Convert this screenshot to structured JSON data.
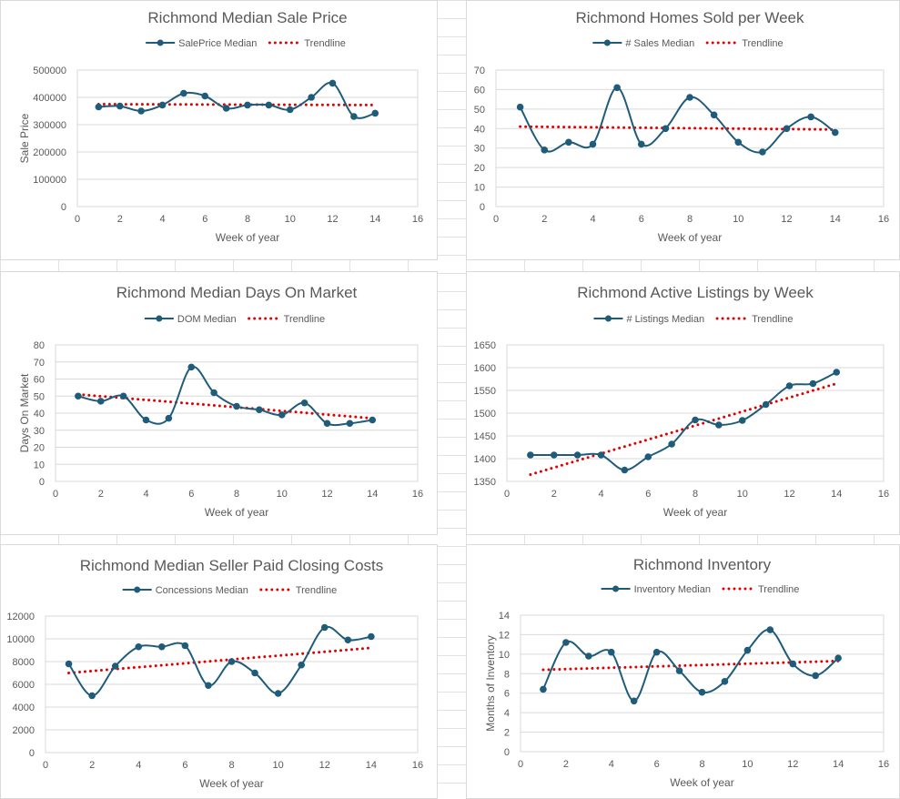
{
  "colors": {
    "series": "#1f5c7a",
    "trend": "#e00000",
    "grid": "#d9d9d9",
    "text": "#595959"
  },
  "chart_data": [
    {
      "id": "sale-price",
      "type": "line",
      "title": "Richmond Median Sale Price",
      "series_name": "SalePrice Median",
      "trend_name": "Trendline",
      "xlabel": "Week of year",
      "ylabel": "Sale Price",
      "xlim": [
        0,
        16
      ],
      "xticks": [
        0,
        2,
        4,
        6,
        8,
        10,
        12,
        14,
        16
      ],
      "ylim": [
        0,
        500000
      ],
      "yticks": [
        0,
        100000,
        200000,
        300000,
        400000,
        500000
      ],
      "x": [
        1,
        2,
        3,
        4,
        5,
        6,
        7,
        8,
        9,
        10,
        11,
        12,
        13,
        14
      ],
      "values": [
        365000,
        368000,
        350000,
        372000,
        415000,
        405000,
        360000,
        372000,
        372000,
        355000,
        400000,
        452000,
        330000,
        342000
      ],
      "trend": [
        [
          1,
          375000
        ],
        [
          14,
          372000
        ]
      ]
    },
    {
      "id": "homes-sold",
      "type": "line",
      "title": "Richmond Homes Sold per Week",
      "series_name": "# Sales Median",
      "trend_name": "Trendline",
      "xlabel": "Week of year",
      "ylabel": "",
      "xlim": [
        0,
        16
      ],
      "xticks": [
        0,
        2,
        4,
        6,
        8,
        10,
        12,
        14,
        16
      ],
      "ylim": [
        0,
        70
      ],
      "yticks": [
        0,
        10,
        20,
        30,
        40,
        50,
        60,
        70
      ],
      "x": [
        1,
        2,
        3,
        4,
        5,
        6,
        7,
        8,
        9,
        10,
        11,
        12,
        13,
        14
      ],
      "values": [
        51,
        29,
        33,
        32,
        61,
        32,
        40,
        56,
        47,
        33,
        28,
        40,
        46,
        38
      ],
      "trend": [
        [
          1,
          41
        ],
        [
          14,
          39.5
        ]
      ]
    },
    {
      "id": "days-on-market",
      "type": "line",
      "title": "Richmond Median Days On Market",
      "series_name": "DOM Median",
      "trend_name": "Trendline",
      "xlabel": "Week of year",
      "ylabel": "Days On Market",
      "xlim": [
        0,
        16
      ],
      "xticks": [
        0,
        2,
        4,
        6,
        8,
        10,
        12,
        14,
        16
      ],
      "ylim": [
        0,
        80
      ],
      "yticks": [
        0,
        10,
        20,
        30,
        40,
        50,
        60,
        70,
        80
      ],
      "x": [
        1,
        2,
        3,
        4,
        5,
        6,
        7,
        8,
        9,
        10,
        11,
        12,
        13,
        14
      ],
      "values": [
        50,
        47,
        50,
        36,
        37,
        67,
        52,
        44,
        42,
        39,
        46,
        34,
        34,
        36
      ],
      "trend": [
        [
          1,
          51
        ],
        [
          14,
          37
        ]
      ]
    },
    {
      "id": "active-listings",
      "type": "line",
      "title": "Richmond Active Listings by Week",
      "series_name": "# Listings Median",
      "trend_name": "Trendline",
      "xlabel": "Week of year",
      "ylabel": "",
      "xlim": [
        0,
        16
      ],
      "xticks": [
        0,
        2,
        4,
        6,
        8,
        10,
        12,
        14,
        16
      ],
      "ylim": [
        1350,
        1650
      ],
      "yticks": [
        1350,
        1400,
        1450,
        1500,
        1550,
        1600,
        1650
      ],
      "x": [
        1,
        2,
        3,
        4,
        5,
        6,
        7,
        8,
        9,
        10,
        11,
        12,
        13,
        14
      ],
      "values": [
        1408,
        1408,
        1408,
        1408,
        1375,
        1404,
        1432,
        1485,
        1474,
        1484,
        1519,
        1560,
        1565,
        1590
      ],
      "trend": [
        [
          1,
          1365
        ],
        [
          14,
          1565
        ]
      ]
    },
    {
      "id": "closing-costs",
      "type": "line",
      "title": "Richmond Median Seller Paid Closing Costs",
      "series_name": "Concessions Median",
      "trend_name": "Trendline",
      "xlabel": "Week of year",
      "ylabel": "",
      "xlim": [
        0,
        16
      ],
      "xticks": [
        0,
        2,
        4,
        6,
        8,
        10,
        12,
        14,
        16
      ],
      "ylim": [
        0,
        12000
      ],
      "yticks": [
        0,
        2000,
        4000,
        6000,
        8000,
        10000,
        12000
      ],
      "x": [
        1,
        2,
        3,
        4,
        5,
        6,
        7,
        8,
        9,
        10,
        11,
        12,
        13,
        14
      ],
      "values": [
        7800,
        5000,
        7600,
        9300,
        9300,
        9400,
        5900,
        8000,
        7000,
        5200,
        7700,
        11000,
        9900,
        10200
      ],
      "trend": [
        [
          1,
          7000
        ],
        [
          14,
          9200
        ]
      ]
    },
    {
      "id": "inventory",
      "type": "line",
      "title": "Richmond Inventory",
      "series_name": "Inventory Median",
      "trend_name": "Trendline",
      "xlabel": "Week of year",
      "ylabel": "Months of Inventory",
      "xlim": [
        0,
        16
      ],
      "xticks": [
        0,
        2,
        4,
        6,
        8,
        10,
        12,
        14,
        16
      ],
      "ylim": [
        0,
        14
      ],
      "yticks": [
        0,
        2,
        4,
        6,
        8,
        10,
        12,
        14
      ],
      "x": [
        1,
        2,
        3,
        4,
        5,
        6,
        7,
        8,
        9,
        10,
        11,
        12,
        13,
        14
      ],
      "values": [
        6.4,
        11.2,
        9.8,
        10.2,
        5.2,
        10.2,
        8.3,
        6.1,
        7.2,
        10.4,
        12.5,
        9.0,
        7.8,
        9.6
      ],
      "trend": [
        [
          1,
          8.4
        ],
        [
          14,
          9.3
        ]
      ]
    }
  ]
}
